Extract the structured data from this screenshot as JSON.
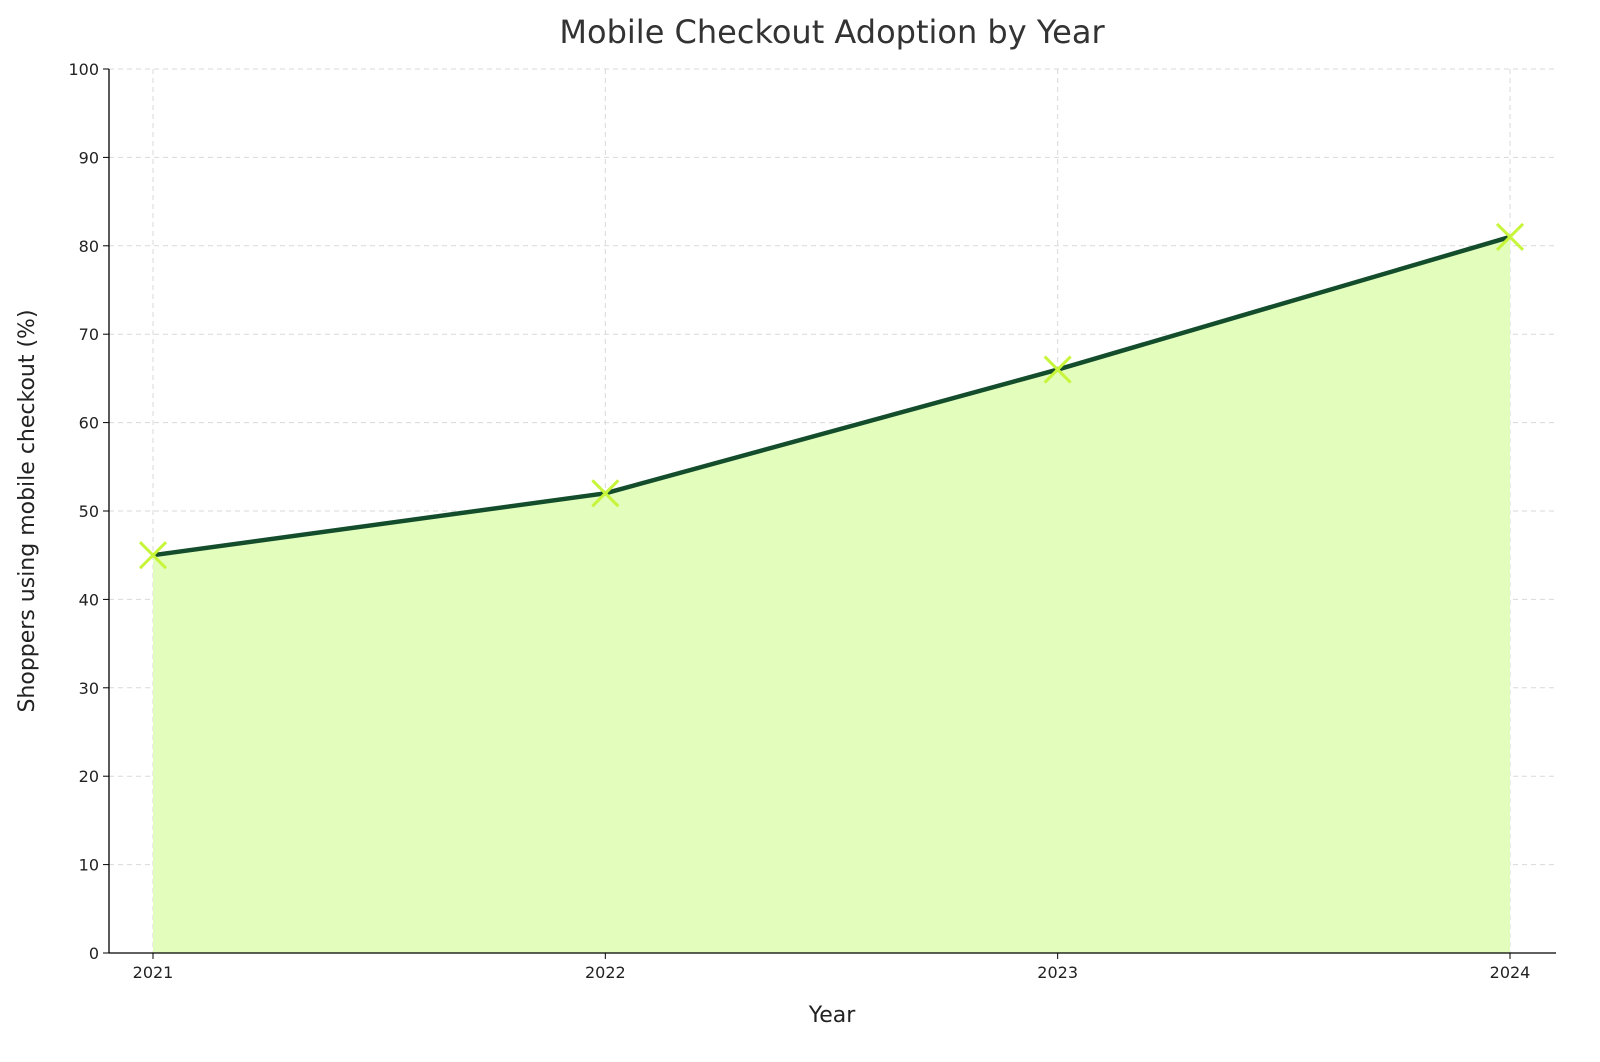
{
  "chart_data": {
    "type": "area",
    "title": "Mobile Checkout Adoption by Year",
    "xlabel": "Year",
    "ylabel": "Shoppers using mobile checkout (%)",
    "categories": [
      "2021",
      "2022",
      "2023",
      "2024"
    ],
    "series": [
      {
        "name": "Shoppers using mobile checkout (%)",
        "values": [
          45,
          52,
          66,
          81
        ]
      }
    ],
    "ylim": [
      0,
      100
    ],
    "yticks": [
      "0",
      "10",
      "20",
      "30",
      "40",
      "50",
      "60",
      "70",
      "80",
      "90",
      "100"
    ],
    "grid": true,
    "marker": "x",
    "colors": {
      "line": "#134d2c",
      "fill": "#e2fdbc",
      "marker": "#c6f53a",
      "grid": "#d9d9d9"
    }
  }
}
